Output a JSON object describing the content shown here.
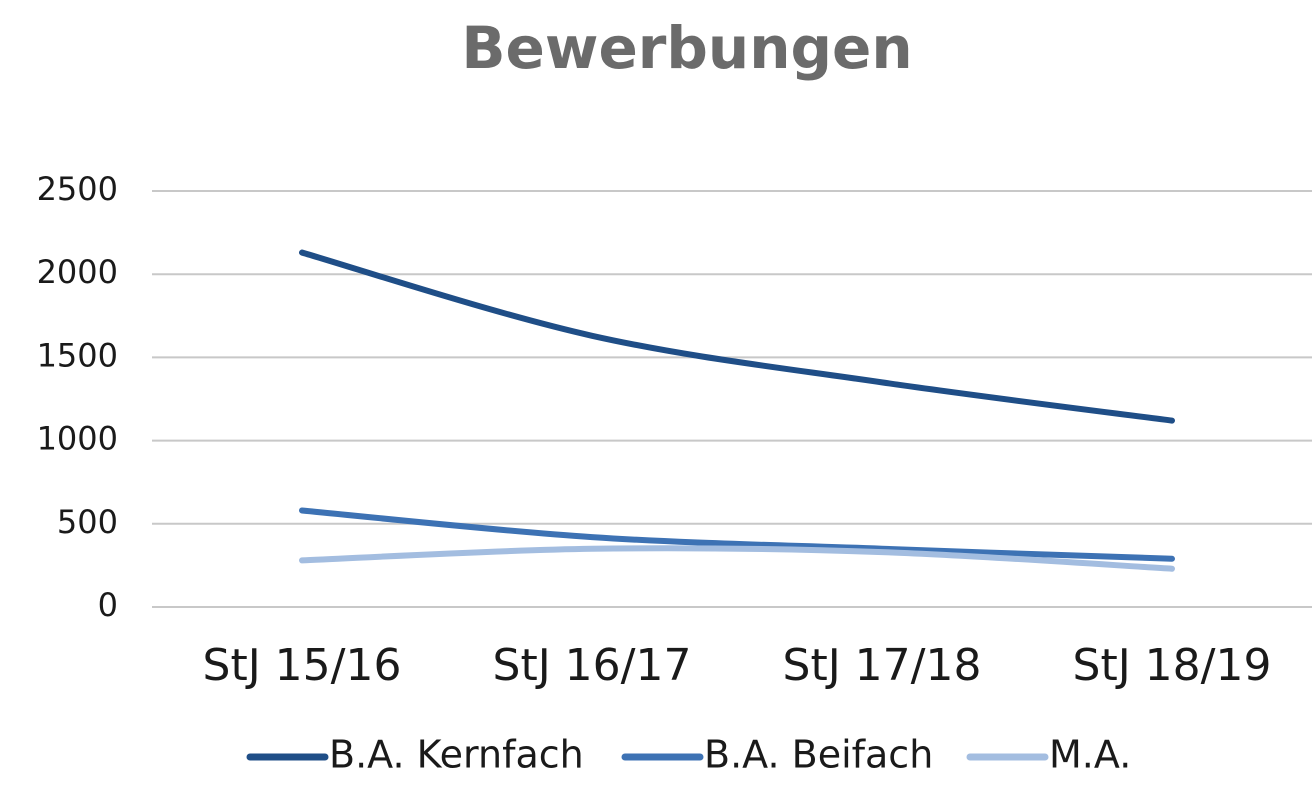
{
  "chart_data": {
    "type": "line",
    "title": "Bewerbungen",
    "categories": [
      "StJ 15/16",
      "StJ 16/17",
      "StJ 17/18",
      "StJ 18/19"
    ],
    "series": [
      {
        "name": "B.A. Kernfach",
        "color": "#1f4e87",
        "values": [
          2130,
          1630,
          1350,
          1120
        ]
      },
      {
        "name": "B.A. Beifach",
        "color": "#3d72b4",
        "values": [
          580,
          420,
          350,
          290
        ]
      },
      {
        "name": "M.A.",
        "color": "#a3bde0",
        "values": [
          280,
          350,
          330,
          230
        ]
      }
    ],
    "ylim": [
      0,
      2500
    ],
    "yticks": [
      0,
      500,
      1000,
      1500,
      2000,
      2500
    ],
    "grid": true,
    "legend": "bottom"
  }
}
